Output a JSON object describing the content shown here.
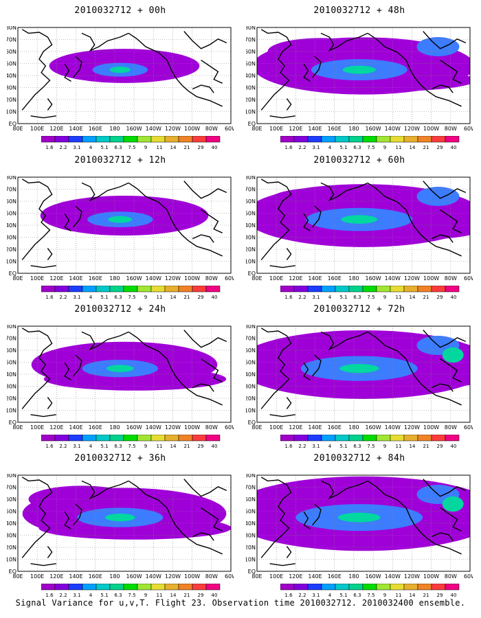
{
  "panels": [
    {
      "title": "2010032712 + 00h",
      "colors": {
        "bg": "#a000d8",
        "mid": "#3c7cff",
        "hot": "#00d8a0"
      }
    },
    {
      "title": "2010032712 + 48h",
      "colors": {
        "bg": "#a000d8",
        "mid": "#3c7cff",
        "hot": "#00d8a0"
      }
    },
    {
      "title": "2010032712 + 12h",
      "colors": {
        "bg": "#a000d8",
        "mid": "#3c7cff",
        "hot": "#00d8a0"
      }
    },
    {
      "title": "2010032712 + 60h",
      "colors": {
        "bg": "#a000d8",
        "mid": "#3c7cff",
        "hot": "#00d8a0"
      }
    },
    {
      "title": "2010032712 + 24h",
      "colors": {
        "bg": "#a000d8",
        "mid": "#3c7cff",
        "hot": "#00d8a0"
      }
    },
    {
      "title": "2010032712 + 72h",
      "colors": {
        "bg": "#a000d8",
        "mid": "#3c7cff",
        "hot": "#00d8a0"
      }
    },
    {
      "title": "2010032712 + 36h",
      "colors": {
        "bg": "#a000d8",
        "mid": "#3c7cff",
        "hot": "#00d8a0"
      }
    },
    {
      "title": "2010032712 + 84h",
      "colors": {
        "bg": "#a000d8",
        "mid": "#3c7cff",
        "hot": "#00d8a0"
      }
    }
  ],
  "lat_labels": [
    "80N",
    "70N",
    "60N",
    "50N",
    "40N",
    "30N",
    "20N",
    "10N",
    "EQ"
  ],
  "lon_labels": [
    "80E",
    "100E",
    "120E",
    "140E",
    "160E",
    "180",
    "160W",
    "140W",
    "120W",
    "100W",
    "80W",
    "60W"
  ],
  "colorbar": {
    "labels": [
      "1.6",
      "2.2",
      "3.1",
      "4",
      "5.1",
      "6.3",
      "7.5",
      "9",
      "11",
      "14",
      "21",
      "29",
      "40"
    ],
    "colors": [
      "#a000c8",
      "#8200dc",
      "#1e3cff",
      "#00a0ff",
      "#00c8c8",
      "#00d28c",
      "#00dc00",
      "#a0e632",
      "#e6dc32",
      "#e6af2d",
      "#f08228",
      "#fa3c3c",
      "#f00082"
    ]
  },
  "caption": "Signal Variance for u,v,T. Flight 23. Observation time 2010032712. 2010032400 ensemble."
}
